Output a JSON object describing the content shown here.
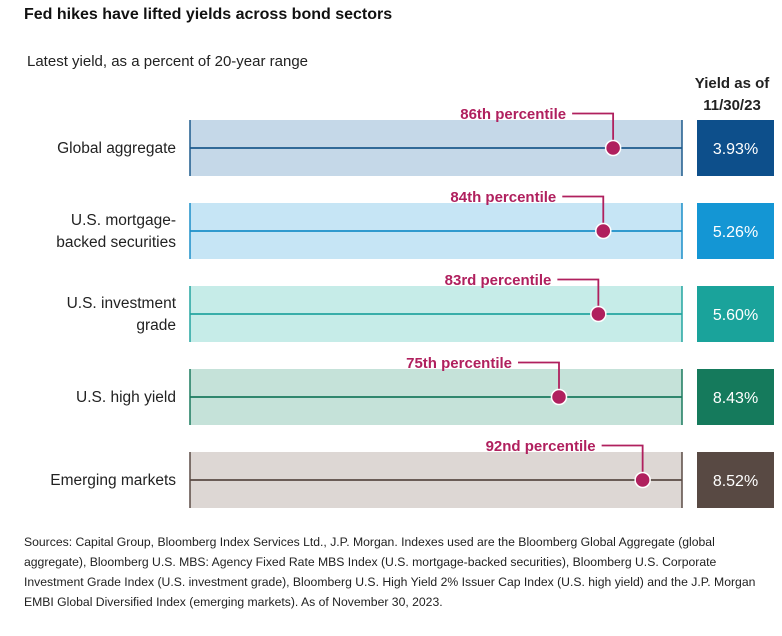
{
  "title": "Fed hikes have lifted yields across bond sectors",
  "subtitle": "Latest yield, as a percent of 20-year range",
  "yield_header": [
    "Yield as of",
    "11/30/23"
  ],
  "chart_data": {
    "type": "bar",
    "title": "Fed hikes have lifted yields across bond sectors",
    "subtitle": "Latest yield, as a percent of 20-year range",
    "xlim": [
      0,
      100
    ],
    "categories": [
      [
        "Global aggregate"
      ],
      [
        "U.S. mortgage-",
        "backed securities"
      ],
      [
        "U.S. investment",
        "grade"
      ],
      [
        "U.S. high yield"
      ],
      [
        "Emerging markets"
      ]
    ],
    "percentile_labels": [
      "86th percentile",
      "84th percentile",
      "83rd percentile",
      "75th percentile",
      "92nd percentile"
    ],
    "percentile_values": [
      86,
      84,
      83,
      75,
      92
    ],
    "yield_labels": [
      "3.93%",
      "5.26%",
      "5.60%",
      "8.43%",
      "8.52%"
    ],
    "yield_values": [
      3.93,
      5.26,
      5.6,
      8.43,
      8.52
    ],
    "colors": {
      "band": [
        "#c5d8e8",
        "#c6e5f5",
        "#c6ece8",
        "#c5e2d9",
        "#ddd7d4"
      ],
      "line": [
        "#1d5a8c",
        "#1b8fc9",
        "#23a5a0",
        "#1b7a5e",
        "#5a4a45"
      ],
      "box": [
        "#0d4f8b",
        "#1496d4",
        "#1aa39b",
        "#157a5c",
        "#584943"
      ],
      "marker": "#b0205e",
      "label": "#b0205e"
    }
  },
  "footnote": "Sources: Capital Group, Bloomberg Index Services Ltd., J.P. Morgan. Indexes used are the Bloomberg Global Aggregate (global aggregate), Bloomberg U.S. MBS: Agency Fixed Rate MBS Index (U.S. mortgage-backed securities), Bloomberg U.S. Corporate Investment Grade Index (U.S. investment grade), Bloomberg U.S. High Yield 2% Issuer Cap Index (U.S. high yield) and the J.P. Morgan EMBI Global Diversified Index (emerging markets). As of November 30, 2023."
}
